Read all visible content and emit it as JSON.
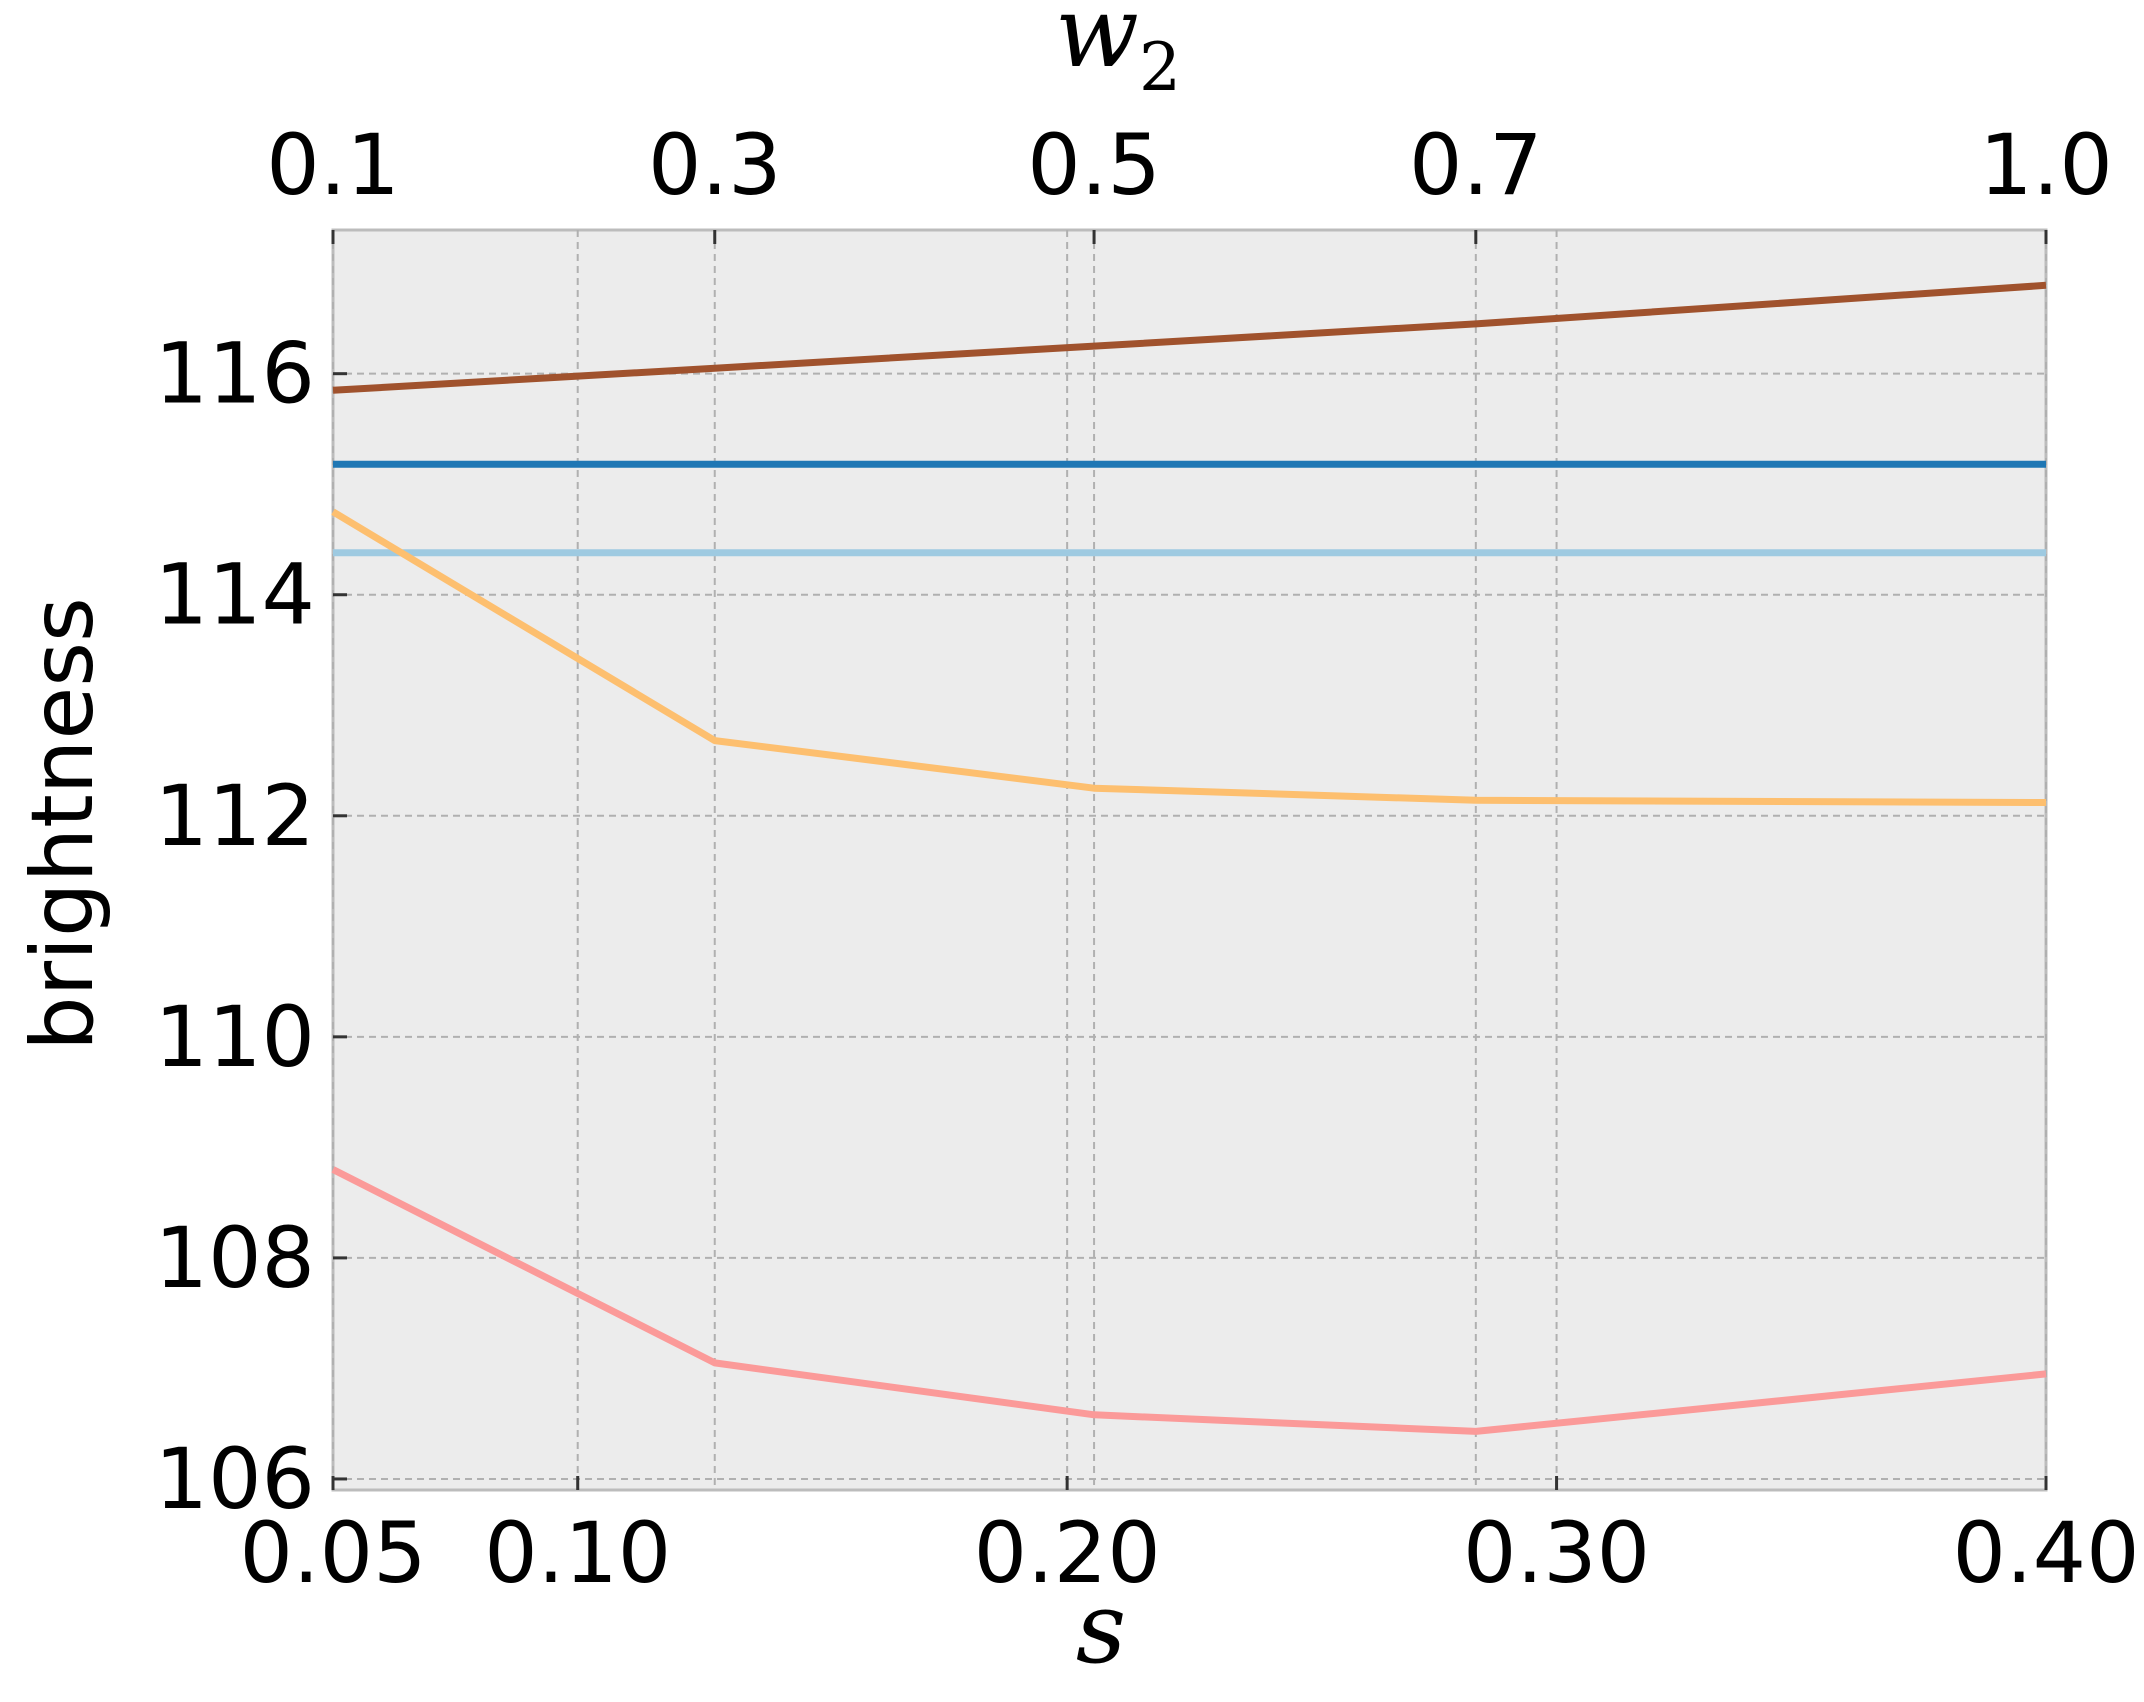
{
  "chart_data": {
    "type": "line",
    "xlabel_bottom": "s",
    "xlabel_top_base": "w",
    "xlabel_top_sub": "2",
    "ylabel": "brightness",
    "ylim": [
      105.9,
      117.3
    ],
    "y_ticks": [
      "106",
      "108",
      "110",
      "112",
      "114",
      "116"
    ],
    "bottom_axis": {
      "xlim": [
        0.05,
        0.4
      ],
      "ticks": [
        {
          "value": 0.05,
          "label": "0.05"
        },
        {
          "value": 0.1,
          "label": "0.10"
        },
        {
          "value": 0.2,
          "label": "0.20"
        },
        {
          "value": 0.3,
          "label": "0.30"
        },
        {
          "value": 0.4,
          "label": "0.40"
        }
      ]
    },
    "top_axis": {
      "ticks": [
        {
          "value": 0.05,
          "label": "0.1"
        },
        {
          "value": 0.128,
          "label": "0.3"
        },
        {
          "value": 0.2055,
          "label": "0.5"
        },
        {
          "value": 0.2835,
          "label": "0.7"
        },
        {
          "value": 0.4,
          "label": "1.0"
        }
      ]
    },
    "grid": true,
    "series": [
      {
        "color": "#a0522d",
        "x": [
          0.05,
          0.128,
          0.2055,
          0.2835,
          0.4
        ],
        "y": [
          115.85,
          116.05,
          116.25,
          116.45,
          116.8
        ]
      },
      {
        "color": "#1f77b4",
        "x": [
          0.05,
          0.4
        ],
        "y": [
          115.18,
          115.18
        ]
      },
      {
        "color": "#9ecae1",
        "x": [
          0.05,
          0.4
        ],
        "y": [
          114.38,
          114.38
        ]
      },
      {
        "color": "#fdbf6f",
        "x": [
          0.05,
          0.128,
          0.2055,
          0.2835,
          0.4
        ],
        "y": [
          114.75,
          112.68,
          112.25,
          112.14,
          112.12
        ]
      },
      {
        "color": "#fb9a99",
        "x": [
          0.05,
          0.128,
          0.2055,
          0.2835,
          0.4
        ],
        "y": [
          108.8,
          107.05,
          106.58,
          106.43,
          106.95
        ]
      }
    ]
  }
}
